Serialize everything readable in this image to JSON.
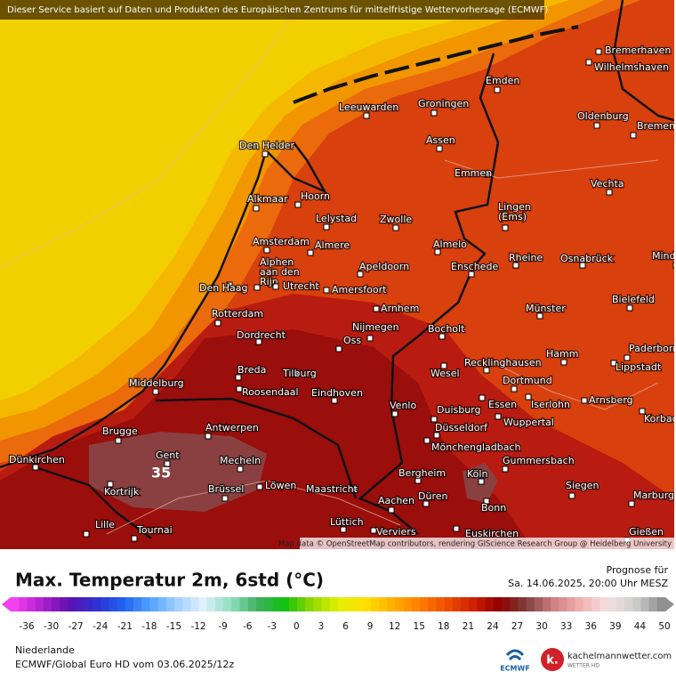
{
  "banner": "Dieser Service basiert auf Daten und Produkten des Europäischen Zentrums für mittelfristige Wettervorhersage (ECMWF)",
  "map": {
    "cities": [
      "Bremerhaven",
      "Wilhelmshaven",
      "Emden",
      "Leeuwarden",
      "Groningen",
      "Oldenburg",
      "Bremen",
      "Den Helder",
      "Assen",
      "Emmen",
      "Vechta",
      "Alkmaar",
      "Hoorn",
      "Lelystad",
      "Zwolle",
      [
        "Lingen",
        "(Ems)"
      ],
      "Amsterdam",
      "Almere",
      "Almelo",
      "Rheine",
      "Osnabrück",
      "Minden",
      [
        "Alphen",
        "aan den",
        "Rijn"
      ],
      "Apeldoorn",
      "Enschede",
      "Den Haag",
      "Utrecht",
      "Amersfoort",
      "Bielefeld",
      "Arnhem",
      "Münster",
      "Rotterdam",
      "Nijmegen",
      "Bocholt",
      "Dordrecht",
      "Oss",
      "Hamm",
      "Paderborn",
      "Breda",
      "Tilburg",
      "Recklinghausen",
      "Lippstadt",
      "Wesel",
      "Middelburg",
      "Dortmund",
      "Roosendaal",
      "Eindhoven",
      "Arnsberg",
      "Venlo",
      "Essen",
      "Iserlohn",
      "Duisburg",
      "Korbach",
      "Wuppertal",
      "Antwerpen",
      "Brugge",
      "Düsseldorf",
      "Mönchengladbach",
      "Dünkirchen",
      "Gent",
      "Mecheln",
      "Gummersbach",
      "Bergheim",
      "Köln",
      "Kortrijk",
      "Brüssel",
      "Löwen",
      "Maastricht",
      "Siegen",
      "Düren",
      "Aachen",
      "Marburg",
      "Bonn",
      "Lille",
      "Tournai",
      "Lüttich",
      "Verviers",
      "Euskirchen",
      "Gießen"
    ],
    "contour_label": "35",
    "attribution": "Map data © OpenStreetMap contributors, rendering GIScience Research Group @ Heidelberg University"
  },
  "header": {
    "title": "Max. Temperatur 2m, 6std (°C)",
    "forecast_label": "Prognose für",
    "forecast_time": "Sa. 14.06.2025, 20:00 Uhr MESZ"
  },
  "legend": {
    "ticks": [
      -36,
      -30,
      -27,
      -24,
      -21,
      -18,
      -15,
      -12,
      -9,
      -6,
      -3,
      0,
      3,
      6,
      9,
      12,
      15,
      18,
      21,
      24,
      27,
      30,
      33,
      36,
      39,
      44,
      50
    ]
  },
  "footer": {
    "region": "Niederlande",
    "model": "ECMWF/Global Euro HD vom  03.06.2025/12z",
    "ecmwf": "ECMWF",
    "brand_mark": "k.",
    "brand": "kachelmannwetter.com",
    "brand_sub": "WETTER HD"
  }
}
